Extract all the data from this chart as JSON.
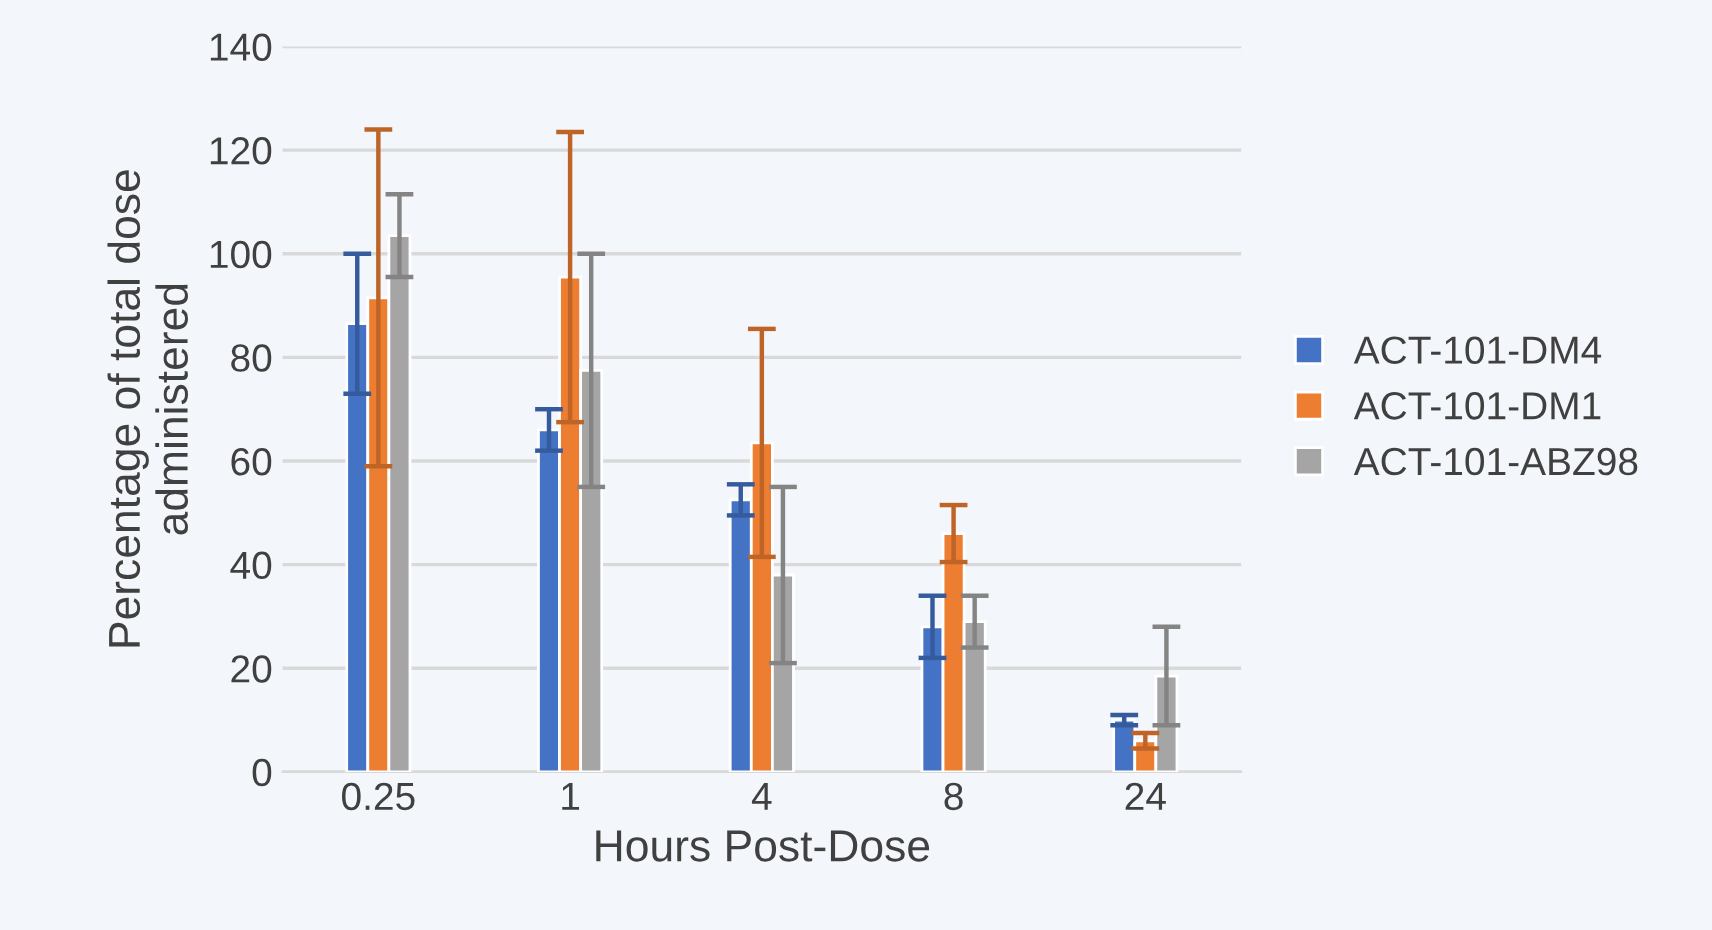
{
  "chart_data": {
    "type": "bar",
    "xlabel": "Hours Post-Dose",
    "ylabel": "Percentage of total dose\nadministered",
    "categories": [
      "0.25",
      "1",
      "4",
      "8",
      "24"
    ],
    "series": [
      {
        "name": "ACT-101-DM4",
        "color": "#4472c4",
        "values": [
          86.5,
          66,
          52.5,
          28,
          10
        ],
        "errors": [
          13.5,
          4,
          3,
          6,
          1
        ]
      },
      {
        "name": "ACT-101-DM1",
        "color": "#ed7d31",
        "values": [
          91.5,
          95.5,
          63.5,
          46,
          6
        ],
        "errors": [
          32.5,
          28,
          22,
          5.5,
          1.5
        ]
      },
      {
        "name": "ACT-101-ABZ98",
        "color": "#a5a5a5",
        "values": [
          103.5,
          77.5,
          38,
          29,
          18.5
        ],
        "errors": [
          8,
          22.5,
          17,
          5,
          9.5
        ]
      }
    ],
    "ylim": [
      0,
      140
    ],
    "yticks": [
      0,
      20,
      40,
      60,
      80,
      100,
      120,
      140
    ],
    "grid": "y",
    "legend": "right"
  }
}
